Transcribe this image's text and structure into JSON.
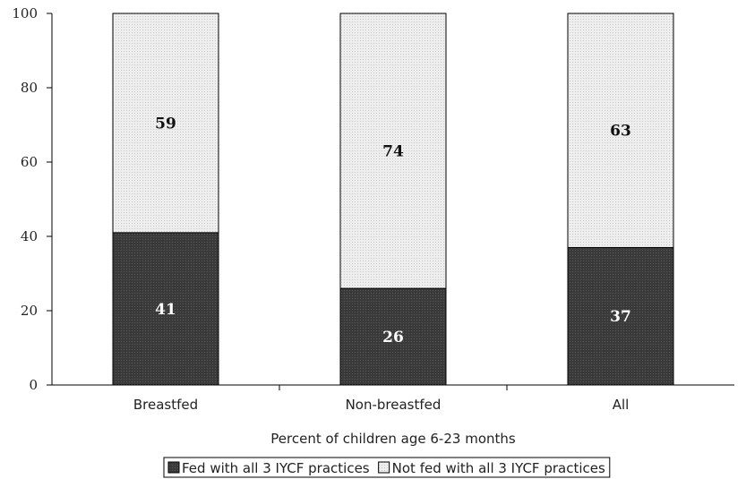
{
  "chart_data": {
    "type": "bar",
    "stacked": true,
    "categories": [
      "Breastfed",
      "Non-breastfed",
      "All"
    ],
    "series": [
      {
        "name": "Fed with all 3 IYCF practices",
        "values": [
          41,
          26,
          37
        ],
        "color": "#3d3d3d",
        "label_color": "#ffffff"
      },
      {
        "name": "Not fed with all 3 IYCF practices",
        "values": [
          59,
          74,
          63
        ],
        "color": "#e6e6e6",
        "label_color": "#111111"
      }
    ],
    "xlabel": "Percent of children age 6-23 months",
    "ylabel": "",
    "ylim": [
      0,
      100
    ],
    "yticks": [
      0,
      20,
      40,
      60,
      80,
      100
    ],
    "legend_position": "bottom",
    "grid": false
  }
}
